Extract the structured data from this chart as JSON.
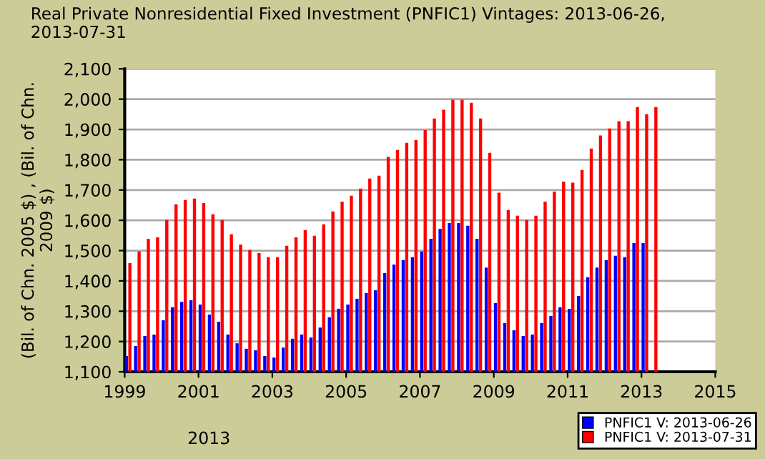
{
  "chart_data": {
    "type": "bar",
    "title": "Real Private Nonresidential Fixed Investment (PNFIC1) Vintages: 2013-06-26,\n2013-07-31",
    "ylabel": "(Bil. of Chn. 2005 $) , (Bil. of Chn.\n2009 $)",
    "annotations": [
      "2013"
    ],
    "x": [
      1999.0,
      1999.25,
      1999.5,
      1999.75,
      2000.0,
      2000.25,
      2000.5,
      2000.75,
      2001.0,
      2001.25,
      2001.5,
      2001.75,
      2002.0,
      2002.25,
      2002.5,
      2002.75,
      2003.0,
      2003.25,
      2003.5,
      2003.75,
      2004.0,
      2004.25,
      2004.5,
      2004.75,
      2005.0,
      2005.25,
      2005.5,
      2005.75,
      2006.0,
      2006.25,
      2006.5,
      2006.75,
      2007.0,
      2007.25,
      2007.5,
      2007.75,
      2008.0,
      2008.25,
      2008.5,
      2008.75,
      2009.0,
      2009.25,
      2009.5,
      2009.75,
      2010.0,
      2010.25,
      2010.5,
      2010.75,
      2011.0,
      2011.25,
      2011.5,
      2011.75,
      2012.0,
      2012.25,
      2012.5,
      2012.75,
      2013.0,
      2013.25
    ],
    "series": [
      {
        "name": "PNFIC1 V: 2013-06-26",
        "color": "#0000ff",
        "values": [
          1152,
          1185,
          1218,
          1223,
          1270,
          1313,
          1331,
          1336,
          1322,
          1289,
          1265,
          1223,
          1194,
          1176,
          1171,
          1152,
          1147,
          1180,
          1209,
          1223,
          1213,
          1246,
          1280,
          1308,
          1322,
          1341,
          1360,
          1369,
          1426,
          1454,
          1469,
          1478,
          1497,
          1539,
          1572,
          1591,
          1591,
          1582,
          1539,
          1444,
          1327,
          1261,
          1237,
          1218,
          1223,
          1261,
          1284,
          1313,
          1308,
          1350,
          1412,
          1444,
          1469,
          1483,
          1478,
          1525,
          1525,
          null
        ]
      },
      {
        "name": "PNFIC1 V: 2013-07-31",
        "color": "#ff0000",
        "values": [
          1459,
          1497,
          1539,
          1544,
          1601,
          1653,
          1667,
          1672,
          1657,
          1620,
          1601,
          1554,
          1520,
          1502,
          1492,
          1478,
          1478,
          1516,
          1544,
          1568,
          1549,
          1587,
          1629,
          1662,
          1681,
          1705,
          1738,
          1747,
          1809,
          1832,
          1856,
          1865,
          1898,
          1936,
          1965,
          1998,
          1998,
          1988,
          1936,
          1823,
          1691,
          1634,
          1615,
          1601,
          1615,
          1662,
          1695,
          1728,
          1724,
          1766,
          1837,
          1880,
          1903,
          1927,
          1927,
          1974,
          1950,
          1974
        ]
      }
    ],
    "xlim": [
      1999,
      2015
    ],
    "xticks": [
      1999,
      2001,
      2003,
      2005,
      2007,
      2009,
      2011,
      2013,
      2015
    ],
    "ylim": [
      1100,
      2100
    ],
    "yticks": [
      {
        "value": 1100,
        "label": "1,100"
      },
      {
        "value": 1200,
        "label": "1,200"
      },
      {
        "value": 1300,
        "label": "1,300"
      },
      {
        "value": 1400,
        "label": "1,400"
      },
      {
        "value": 1500,
        "label": "1,500"
      },
      {
        "value": 1600,
        "label": "1,600"
      },
      {
        "value": 1700,
        "label": "1,700"
      },
      {
        "value": 1800,
        "label": "1,800"
      },
      {
        "value": 1900,
        "label": "1,900"
      },
      {
        "value": 2000,
        "label": "2,000"
      },
      {
        "value": 2100,
        "label": "2,100"
      }
    ],
    "grid": "y",
    "legend": "bottom right"
  }
}
